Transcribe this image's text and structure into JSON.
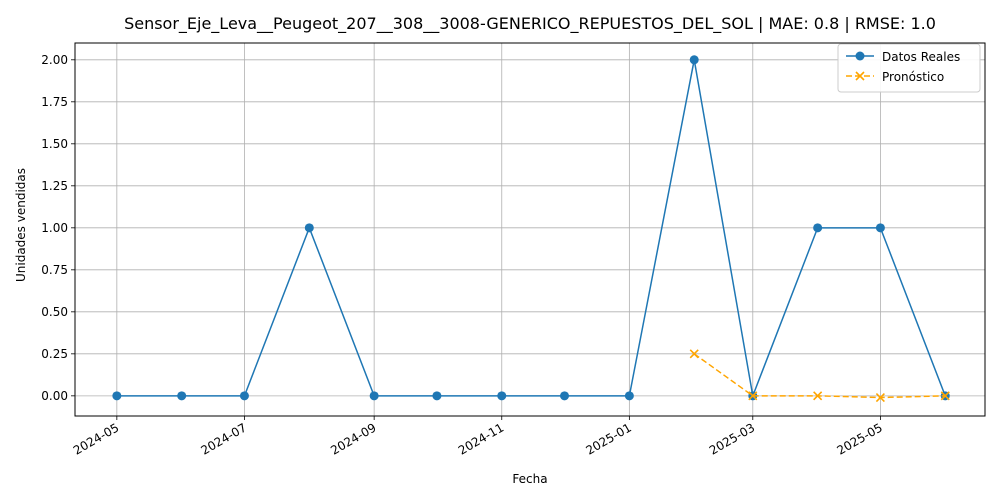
{
  "chart_data": {
    "type": "line",
    "title": "Sensor_Eje_Leva__Peugeot_207__308__3008-GENERICO_REPUESTOS_DEL_SOL | MAE: 0.8 | RMSE: 1.0",
    "xlabel": "Fecha",
    "ylabel": "Unidades vendidas",
    "ylim": [
      -0.12,
      2.1
    ],
    "xlim": [
      "2024-04-11",
      "2025-06-20"
    ],
    "grid": true,
    "legend_position": "top-right",
    "x_ticks": [
      "2024-05",
      "2024-07",
      "2024-09",
      "2024-11",
      "2025-01",
      "2025-03",
      "2025-05"
    ],
    "y_ticks": [
      "0.00",
      "0.25",
      "0.50",
      "0.75",
      "1.00",
      "1.25",
      "1.50",
      "1.75",
      "2.00"
    ],
    "series": [
      {
        "name": "Datos Reales",
        "color": "#1f77b4",
        "style": "solid",
        "marker": "circle",
        "x": [
          "2024-05-01",
          "2024-06-01",
          "2024-07-01",
          "2024-08-01",
          "2024-09-01",
          "2024-10-01",
          "2024-11-01",
          "2024-12-01",
          "2025-01-01",
          "2025-02-01",
          "2025-03-01",
          "2025-04-01",
          "2025-05-01",
          "2025-06-01"
        ],
        "values": [
          0,
          0,
          0,
          1,
          0,
          0,
          0,
          0,
          0,
          2,
          0,
          1,
          1,
          0
        ]
      },
      {
        "name": "Pronóstico",
        "color": "#ffa500",
        "style": "dashed",
        "marker": "x",
        "x": [
          "2025-02-01",
          "2025-03-01",
          "2025-04-01",
          "2025-05-01",
          "2025-06-01"
        ],
        "values": [
          0.25,
          0.0,
          0.0,
          -0.01,
          0.0
        ]
      }
    ]
  }
}
